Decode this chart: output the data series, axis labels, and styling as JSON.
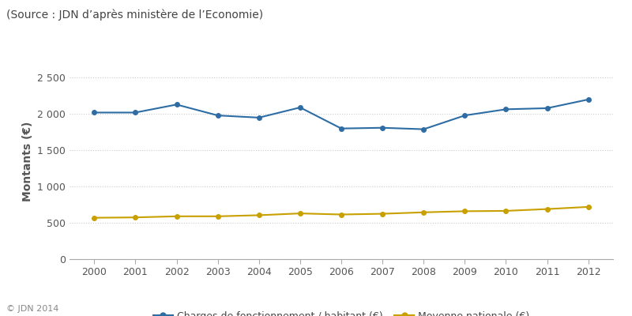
{
  "years": [
    2000,
    2001,
    2002,
    2003,
    2004,
    2005,
    2006,
    2007,
    2008,
    2009,
    2010,
    2011,
    2012
  ],
  "charges": [
    2020,
    2020,
    2130,
    1980,
    1950,
    2090,
    1800,
    1810,
    1790,
    1980,
    2065,
    2080,
    2200
  ],
  "moyenne": [
    570,
    575,
    590,
    590,
    605,
    630,
    615,
    625,
    645,
    660,
    665,
    690,
    720
  ],
  "charges_color": "#2e6da4",
  "moyenne_color": "#c8a000",
  "background_color": "#ffffff",
  "ylabel": "Montants (€)",
  "source_text": "(Source : JDN d’après ministère de l’Economie)",
  "copyright_text": "© JDN 2014",
  "legend_charges": "Charges de fonctionnement / habitant (€)",
  "legend_moyenne": "Moyenne nationale (€)",
  "ylim": [
    0,
    2700
  ],
  "yticks": [
    0,
    500,
    1000,
    1500,
    2000,
    2500
  ],
  "ytick_labels": [
    "0",
    "500",
    "1 000",
    "1 500",
    "2 000",
    "2 500"
  ],
  "grid_color": "#cccccc",
  "source_fontsize": 10,
  "axis_fontsize": 10,
  "tick_fontsize": 9,
  "legend_fontsize": 9,
  "copyright_fontsize": 8
}
